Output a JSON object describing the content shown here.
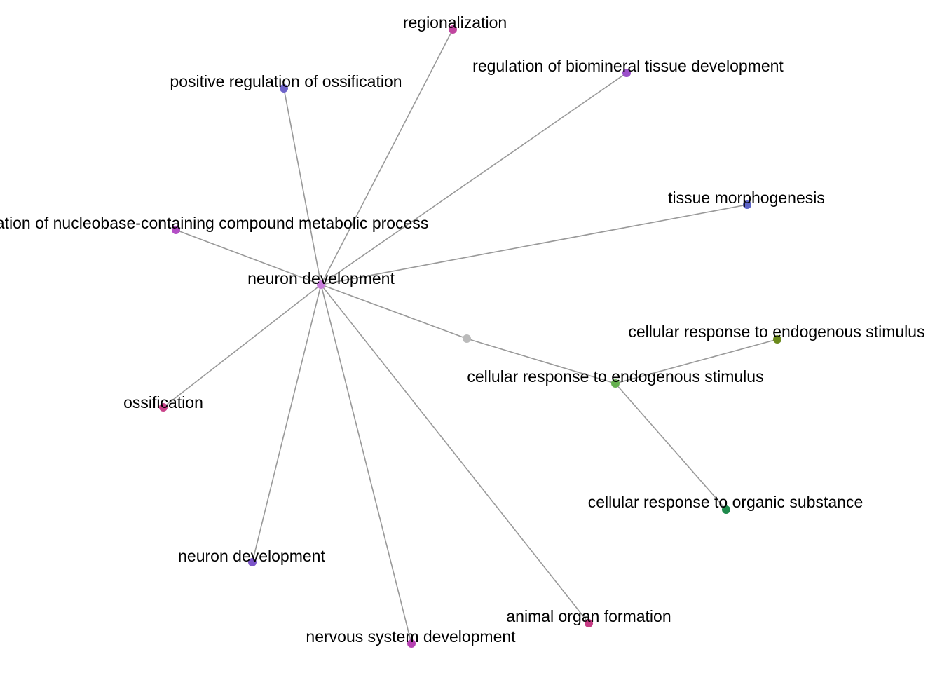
{
  "nodes": [
    {
      "id": "hub",
      "label": "neuron development",
      "color": "#c77cdb"
    },
    {
      "id": "regionalization",
      "label": "regionalization",
      "color": "#c0459f"
    },
    {
      "id": "pos-reg-ossification",
      "label": "positive regulation of ossification",
      "color": "#6e63c9"
    },
    {
      "id": "reg-biomineral",
      "label": "regulation of biomineral tissue development",
      "color": "#9b4fca"
    },
    {
      "id": "tissue-morphogenesis",
      "label": "tissue morphogenesis",
      "color": "#5b62c7"
    },
    {
      "id": "reg-nucleobase",
      "label": "regulation of nucleobase-containing compound metabolic process",
      "color": "#b44fc6"
    },
    {
      "id": "ossification",
      "label": "ossification",
      "color": "#c9438a"
    },
    {
      "id": "neuron-development-2",
      "label": "neuron development",
      "color": "#7c55c9"
    },
    {
      "id": "nervous-system-development",
      "label": "nervous system development",
      "color": "#b642b2"
    },
    {
      "id": "animal-organ-formation",
      "label": "animal organ formation",
      "color": "#c63a83"
    },
    {
      "id": "junction",
      "label": "",
      "color": "#bbbbbb"
    },
    {
      "id": "cellular-response-endogenous",
      "label": "cellular response to endogenous stimulus",
      "color": "#64b04e"
    },
    {
      "id": "cellular-response-endogenous-2",
      "label": "cellular response to endogenous stimulus",
      "color": "#6b8a1c"
    },
    {
      "id": "cellular-response-organic",
      "label": "cellular response to organic substance",
      "color": "#1f8a4c"
    }
  ],
  "edges": [
    [
      "hub",
      "regionalization"
    ],
    [
      "hub",
      "pos-reg-ossification"
    ],
    [
      "hub",
      "reg-biomineral"
    ],
    [
      "hub",
      "tissue-morphogenesis"
    ],
    [
      "hub",
      "reg-nucleobase"
    ],
    [
      "hub",
      "ossification"
    ],
    [
      "hub",
      "neuron-development-2"
    ],
    [
      "hub",
      "nervous-system-development"
    ],
    [
      "hub",
      "animal-organ-formation"
    ],
    [
      "hub",
      "junction"
    ],
    [
      "junction",
      "cellular-response-endogenous"
    ],
    [
      "cellular-response-endogenous",
      "cellular-response-endogenous-2"
    ],
    [
      "cellular-response-endogenous",
      "cellular-response-organic"
    ]
  ]
}
